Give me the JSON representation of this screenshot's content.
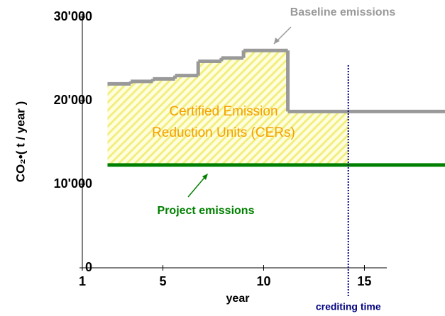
{
  "chart_data": {
    "type": "step",
    "xlabel": "year",
    "ylabel": "CO₂•( t / year )",
    "xlim": [
      1,
      19
    ],
    "xticks": [
      1,
      5,
      10,
      15
    ],
    "ylim": [
      0,
      30000
    ],
    "yticks": [
      {
        "value": 0,
        "label": "0"
      },
      {
        "value": 10000,
        "label": "10'000"
      },
      {
        "value": 20000,
        "label": "20'000"
      },
      {
        "value": 30000,
        "label": "30'000"
      }
    ],
    "series": [
      {
        "name": "Baseline emissions",
        "color": "#999999",
        "x": [
          2.25,
          3.4,
          4.5,
          5.6,
          6.75,
          7.9,
          9,
          11.2
        ],
        "values": [
          22000,
          22300,
          22600,
          23000,
          24700,
          25100,
          26000,
          18700
        ]
      },
      {
        "name": "Project emissions",
        "color": "#008000",
        "x": [
          2.25
        ],
        "values": [
          12300
        ]
      }
    ],
    "area_label": [
      "Certified Emission",
      "Reduction Units (CERs)"
    ],
    "area_color": "#f5a000",
    "crediting_time": {
      "x": 14.2,
      "label": "crediting time",
      "color": "#000080"
    }
  }
}
